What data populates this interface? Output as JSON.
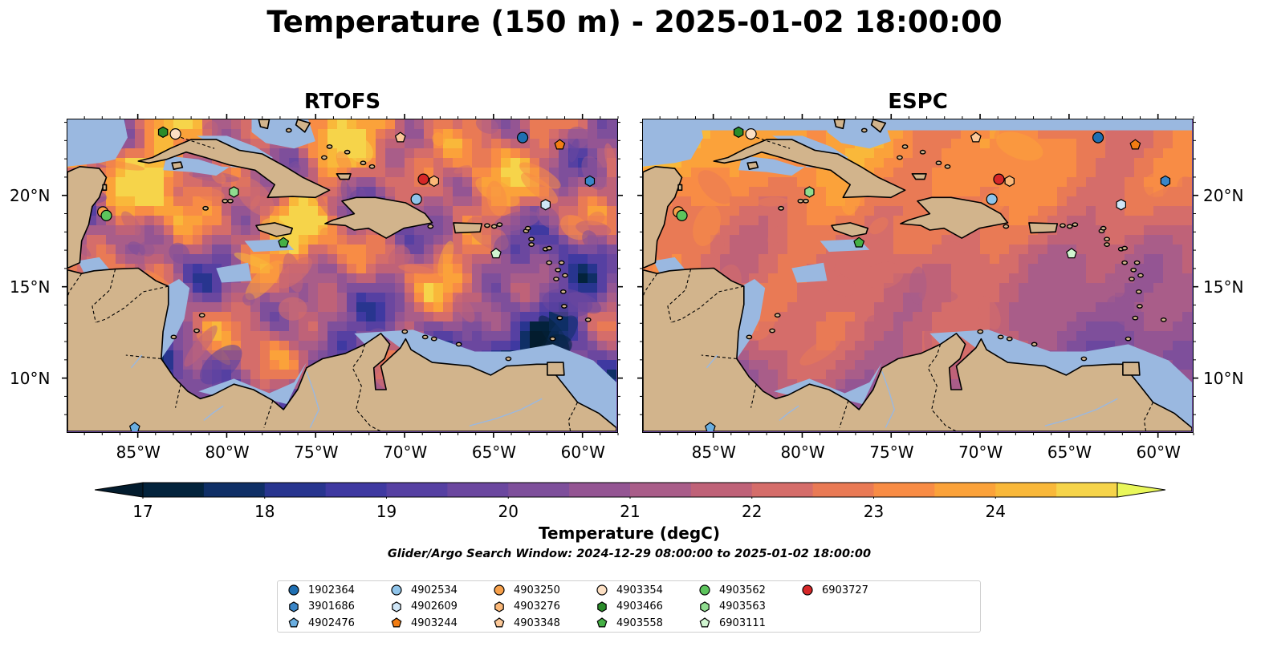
{
  "title": "Temperature (150 m) - 2025-01-02 18:00:00",
  "panels": [
    {
      "title": "RTOFS",
      "type": "rtofs"
    },
    {
      "title": "ESPC",
      "type": "espc"
    }
  ],
  "map": {
    "lon_range": [
      -89,
      -58
    ],
    "lat_range": [
      7,
      24.2
    ],
    "lon_ticks": [
      {
        "value": -85,
        "label": "85°W"
      },
      {
        "value": -80,
        "label": "80°W"
      },
      {
        "value": -75,
        "label": "75°W"
      },
      {
        "value": -70,
        "label": "70°W"
      },
      {
        "value": -65,
        "label": "65°W"
      },
      {
        "value": -60,
        "label": "60°W"
      }
    ],
    "lat_ticks": [
      {
        "value": 20,
        "label": "20°N"
      },
      {
        "value": 15,
        "label": "15°N"
      },
      {
        "value": 10,
        "label": "10°N"
      }
    ],
    "colors": {
      "land": "#d2b48c",
      "shelf": "#9ab8e0",
      "deep": "#04243a",
      "coast": "#000000",
      "rivers": "#9ab8e0"
    }
  },
  "colorbar": {
    "label": "Temperature (degC)",
    "vmin": 16.625,
    "vmax": 24.875,
    "ticks": [
      {
        "value": 17,
        "label": "17"
      },
      {
        "value": 18,
        "label": "18"
      },
      {
        "value": 19,
        "label": "19"
      },
      {
        "value": 20,
        "label": "20"
      },
      {
        "value": 21,
        "label": "21"
      },
      {
        "value": 22,
        "label": "22"
      },
      {
        "value": 23,
        "label": "23"
      },
      {
        "value": 24,
        "label": "24"
      }
    ],
    "levels": [
      17,
      17.5,
      18,
      18.5,
      19,
      19.5,
      20,
      20.5,
      21,
      21.5,
      22,
      22.5,
      23,
      23.5,
      24,
      24.5
    ],
    "colors": [
      "#03233c",
      "#0f2f66",
      "#28358f",
      "#3f39a1",
      "#5640a2",
      "#6b479f",
      "#7e4f9b",
      "#945593",
      "#a95d89",
      "#bf6278",
      "#d56d6a",
      "#e97a55",
      "#f88c45",
      "#fba23a",
      "#f9b83a",
      "#f6d44a"
    ],
    "under_color": "#031c2e",
    "over_color": "#e9f75a"
  },
  "search_window": "Glider/Argo Search Window: 2024-12-29 08:00:00 to 2025-01-02 18:00:00",
  "floats": [
    {
      "id": "1902364",
      "marker": "circle",
      "color": "#1f6fb2",
      "lon": -63.3,
      "lat": 23.2
    },
    {
      "id": "3901686",
      "marker": "hexagon",
      "color": "#3a86c8",
      "lon": -59.5,
      "lat": 20.8
    },
    {
      "id": "4902476",
      "marker": "pentagon",
      "color": "#6aaee0",
      "lon": -85.2,
      "lat": 7.2
    },
    {
      "id": "4902534",
      "marker": "circle",
      "color": "#8fc4ea",
      "lon": -69.3,
      "lat": 19.8
    },
    {
      "id": "4902609",
      "marker": "hexagon",
      "color": "#cfe6f7",
      "lon": -62.0,
      "lat": 19.5
    },
    {
      "id": "4903244",
      "marker": "pentagon",
      "color": "#f27d13",
      "lon": -61.2,
      "lat": 22.8
    },
    {
      "id": "4903250",
      "marker": "circle",
      "color": "#f7a04a",
      "lon": -87.0,
      "lat": 19.1
    },
    {
      "id": "4903276",
      "marker": "hexagon",
      "color": "#fbb878",
      "lon": -68.3,
      "lat": 20.8
    },
    {
      "id": "4903348",
      "marker": "pentagon",
      "color": "#fcc898",
      "lon": -70.2,
      "lat": 23.2
    },
    {
      "id": "4903354",
      "marker": "circle",
      "color": "#fde0c4",
      "lon": -82.9,
      "lat": 23.4
    },
    {
      "id": "4903466",
      "marker": "hexagon",
      "color": "#2a8c2a",
      "lon": -83.6,
      "lat": 23.5
    },
    {
      "id": "4903558",
      "marker": "pentagon",
      "color": "#45b045",
      "lon": -76.8,
      "lat": 17.4
    },
    {
      "id": "4903562",
      "marker": "circle",
      "color": "#5cc45c",
      "lon": -86.8,
      "lat": 18.9
    },
    {
      "id": "4903563",
      "marker": "hexagon",
      "color": "#8fdc8f",
      "lon": -79.6,
      "lat": 20.2
    },
    {
      "id": "6903111",
      "marker": "pentagon",
      "color": "#d0f5d0",
      "lon": -64.8,
      "lat": 16.8
    },
    {
      "id": "6903727",
      "marker": "circle",
      "color": "#d62728",
      "lon": -68.9,
      "lat": 20.9
    }
  ]
}
